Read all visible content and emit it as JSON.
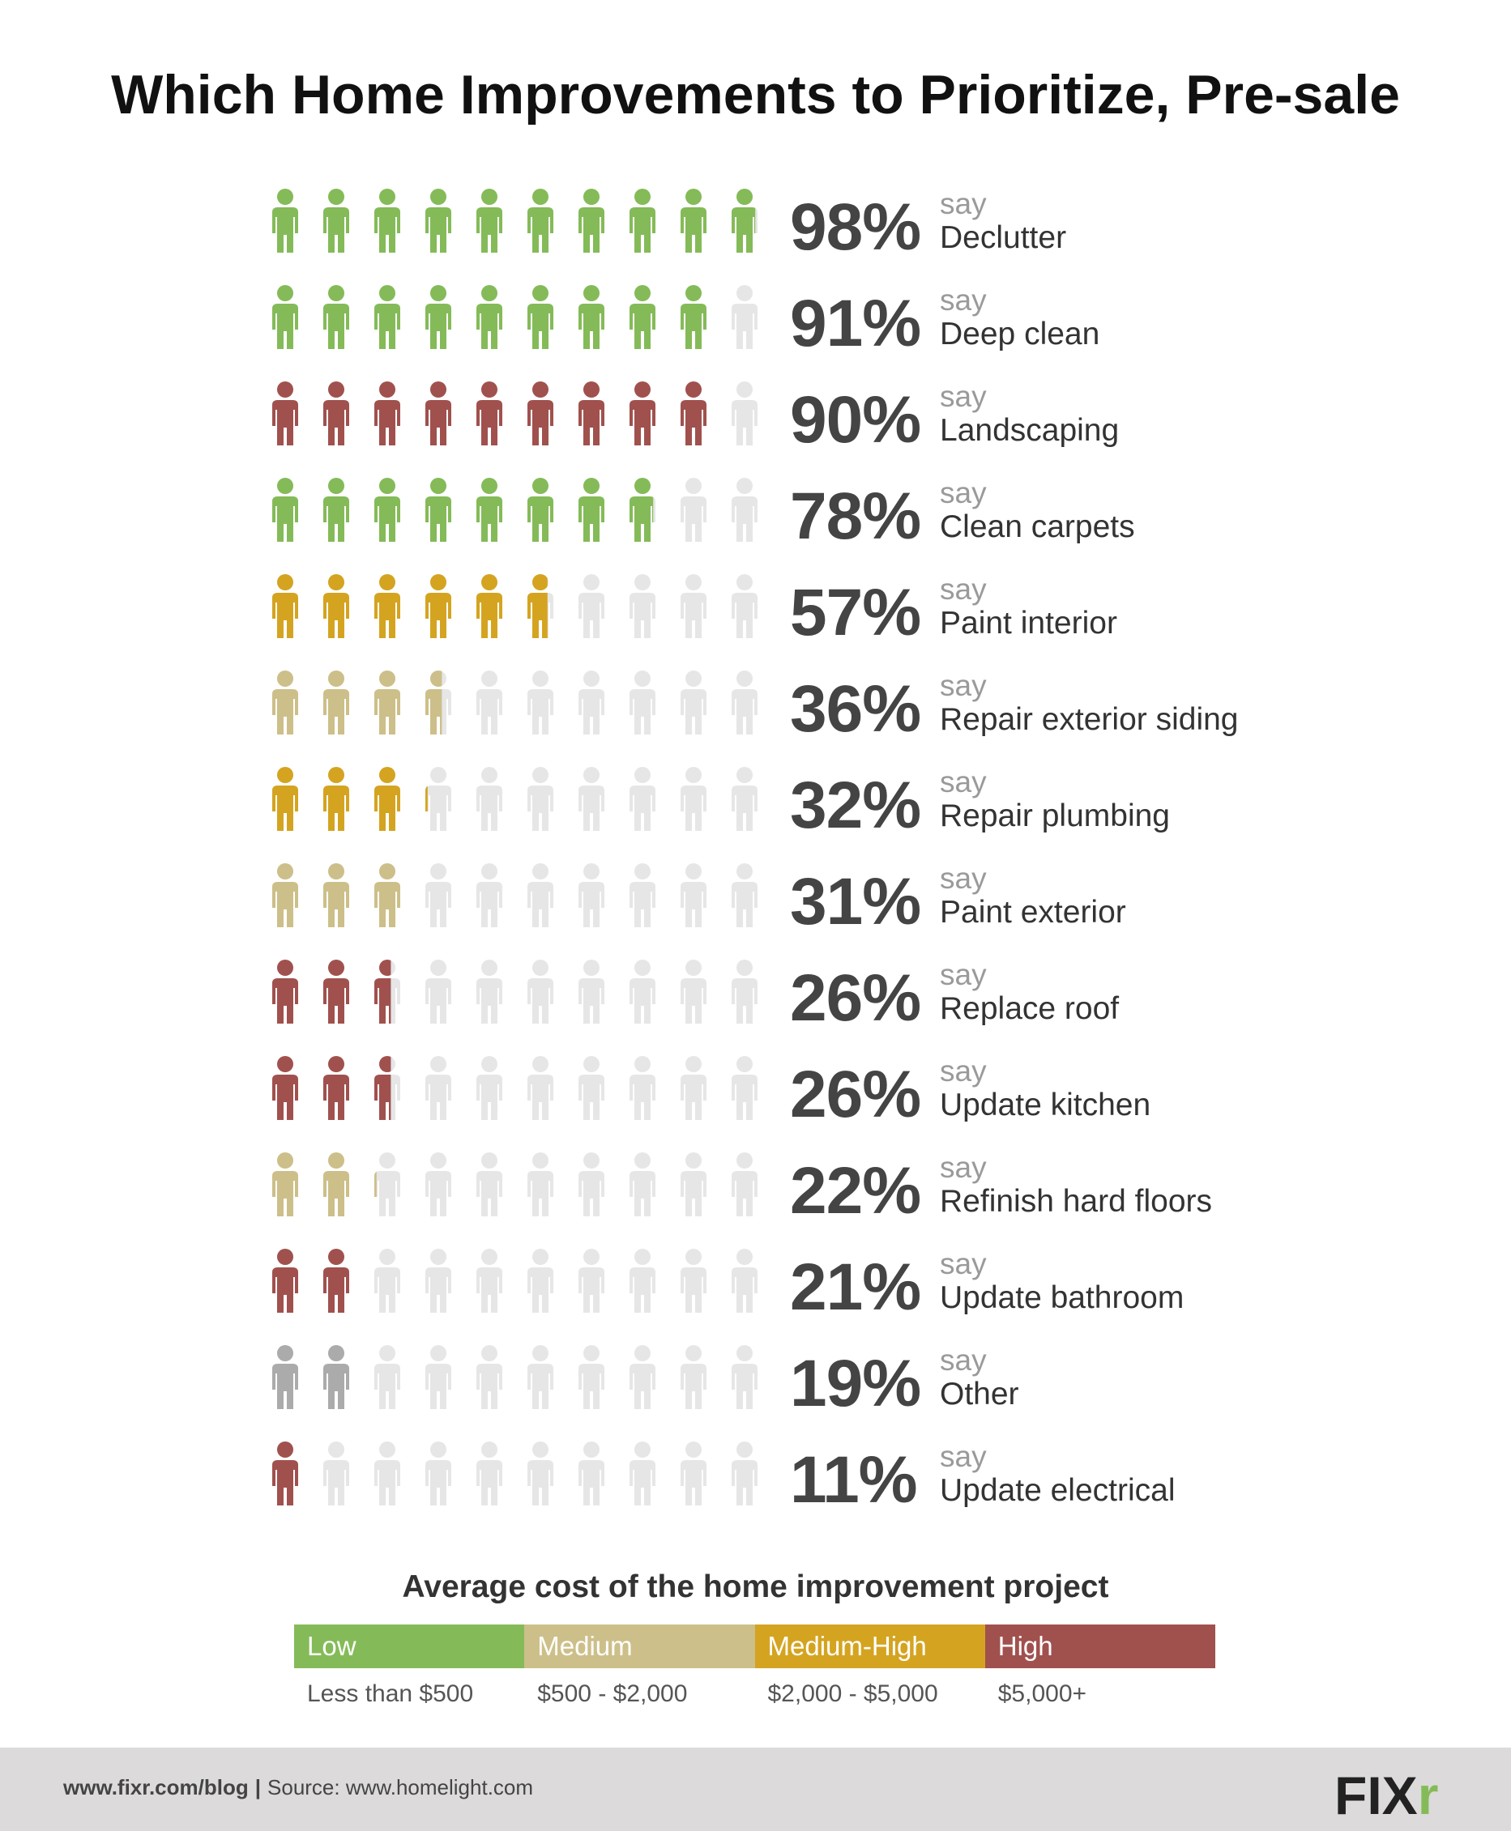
{
  "title": "Which Home Improvements to Prioritize, Pre-sale",
  "say_text": "say",
  "colors": {
    "low": "#84bb58",
    "medium": "#cdbf89",
    "medium_high": "#d4a421",
    "high": "#a0514e",
    "other": "#ababab",
    "empty": "#e6e6e6"
  },
  "chart_data": {
    "type": "pictogram",
    "icons_per_row": 10,
    "unit": "%",
    "rows": [
      {
        "label": "Declutter",
        "value": 98,
        "value_text": "98%",
        "cost": "low"
      },
      {
        "label": "Deep clean",
        "value": 91,
        "value_text": "91%",
        "cost": "low"
      },
      {
        "label": "Landscaping",
        "value": 90,
        "value_text": "90%",
        "cost": "high"
      },
      {
        "label": "Clean carpets",
        "value": 78,
        "value_text": "78%",
        "cost": "low"
      },
      {
        "label": "Paint interior",
        "value": 57,
        "value_text": "57%",
        "cost": "medium_high"
      },
      {
        "label": "Repair exterior siding",
        "value": 36,
        "value_text": "36%",
        "cost": "medium"
      },
      {
        "label": "Repair plumbing",
        "value": 32,
        "value_text": "32%",
        "cost": "medium_high"
      },
      {
        "label": "Paint exterior",
        "value": 31,
        "value_text": "31%",
        "cost": "medium"
      },
      {
        "label": "Replace roof",
        "value": 26,
        "value_text": "26%",
        "cost": "high"
      },
      {
        "label": "Update kitchen",
        "value": 26,
        "value_text": "26%",
        "cost": "high"
      },
      {
        "label": "Refinish hard floors",
        "value": 22,
        "value_text": "22%",
        "cost": "medium"
      },
      {
        "label": "Update bathroom",
        "value": 21,
        "value_text": "21%",
        "cost": "high"
      },
      {
        "label": "Other",
        "value": 19,
        "value_text": "19%",
        "cost": "other"
      },
      {
        "label": "Update electrical",
        "value": 11,
        "value_text": "11%",
        "cost": "high"
      }
    ]
  },
  "legend": {
    "title": "Average cost of the home improvement project",
    "items": [
      {
        "key": "low",
        "label": "Low",
        "range": "Less than $500"
      },
      {
        "key": "medium",
        "label": "Medium",
        "range": "$500 - $2,000"
      },
      {
        "key": "medium_high",
        "label": "Medium-High",
        "range": "$2,000 - $5,000"
      },
      {
        "key": "high",
        "label": "High",
        "range": "$5,000+"
      }
    ]
  },
  "footer": {
    "site": "www.fixr.com/blog",
    "separator": "|",
    "source": "Source: www.homelight.com",
    "logo_text": "FIXr"
  }
}
